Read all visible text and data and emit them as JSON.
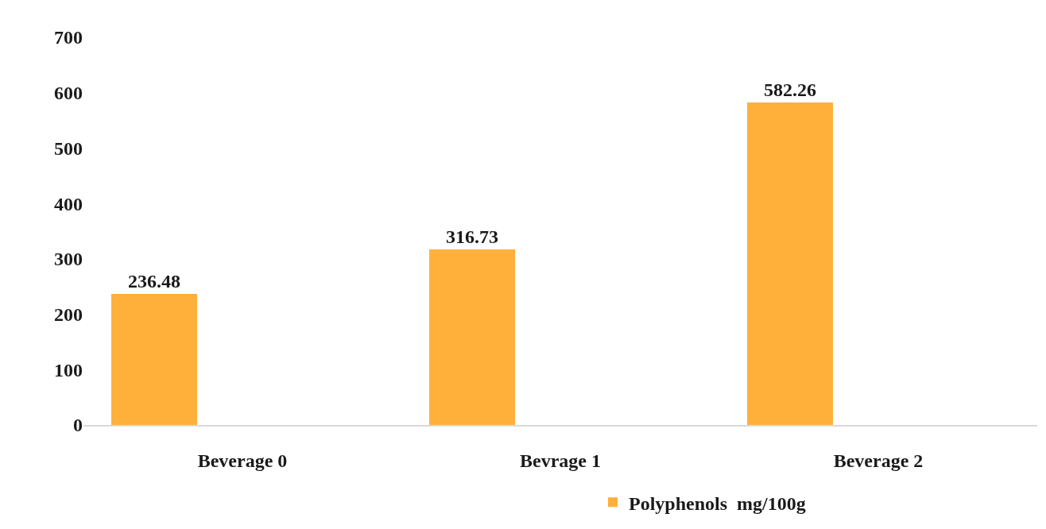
{
  "chart_data": {
    "type": "bar",
    "categories": [
      "Beverage 0",
      "Bevrage 1",
      "Beverage 2"
    ],
    "series": [
      {
        "name": "Polyphenols  mg/100g",
        "color": "#ffb03b",
        "values": [
          236.48,
          316.73,
          582.26
        ]
      }
    ],
    "ylim": [
      0,
      700
    ],
    "yticks": [
      0,
      100,
      200,
      300,
      400,
      500,
      600,
      700
    ],
    "legend": "bottom",
    "data_labels": true
  }
}
